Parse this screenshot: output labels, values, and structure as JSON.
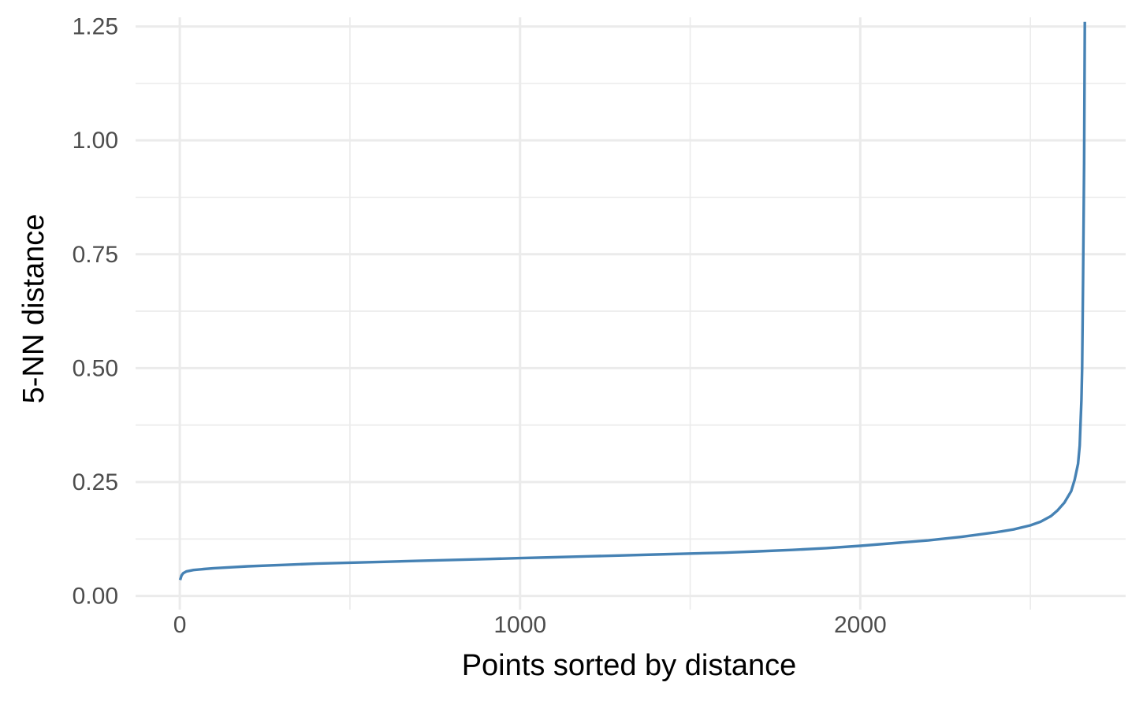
{
  "chart_data": {
    "type": "line",
    "title": "",
    "xlabel": "Points sorted by distance",
    "ylabel": "5-NN distance",
    "xlim": [
      -130,
      2780
    ],
    "ylim": [
      -0.03,
      1.27
    ],
    "x_ticks": [
      0,
      1000,
      2000
    ],
    "x_tick_labels": [
      "0",
      "1000",
      "2000"
    ],
    "x_minor_ticks": [
      500,
      1500,
      2500
    ],
    "y_ticks": [
      0.0,
      0.25,
      0.5,
      0.75,
      1.0,
      1.25
    ],
    "y_tick_labels": [
      "0.00",
      "0.25",
      "0.50",
      "0.75",
      "1.00",
      "1.25"
    ],
    "y_minor_ticks": [
      0.125,
      0.375,
      0.625,
      0.875,
      1.125
    ],
    "grid": true,
    "legend": "none",
    "line_color": "#4682b4",
    "series": [
      {
        "x": [
          1,
          5,
          10,
          20,
          40,
          70,
          100,
          200,
          300,
          400,
          500,
          600,
          700,
          800,
          900,
          1000,
          1100,
          1200,
          1300,
          1400,
          1500,
          1600,
          1700,
          1800,
          1900,
          2000,
          2100,
          2200,
          2300,
          2350,
          2400,
          2450,
          2500,
          2530,
          2560,
          2580,
          2600,
          2620,
          2630,
          2640,
          2645,
          2648,
          2650,
          2652,
          2655,
          2658,
          2660
        ],
        "y": [
          0.035,
          0.045,
          0.05,
          0.054,
          0.057,
          0.059,
          0.061,
          0.065,
          0.068,
          0.071,
          0.073,
          0.075,
          0.077,
          0.079,
          0.081,
          0.083,
          0.085,
          0.087,
          0.089,
          0.091,
          0.093,
          0.095,
          0.098,
          0.101,
          0.105,
          0.11,
          0.116,
          0.122,
          0.13,
          0.135,
          0.14,
          0.146,
          0.155,
          0.163,
          0.175,
          0.188,
          0.205,
          0.23,
          0.255,
          0.29,
          0.33,
          0.39,
          0.43,
          0.5,
          0.7,
          0.95,
          1.26
        ]
      }
    ]
  }
}
